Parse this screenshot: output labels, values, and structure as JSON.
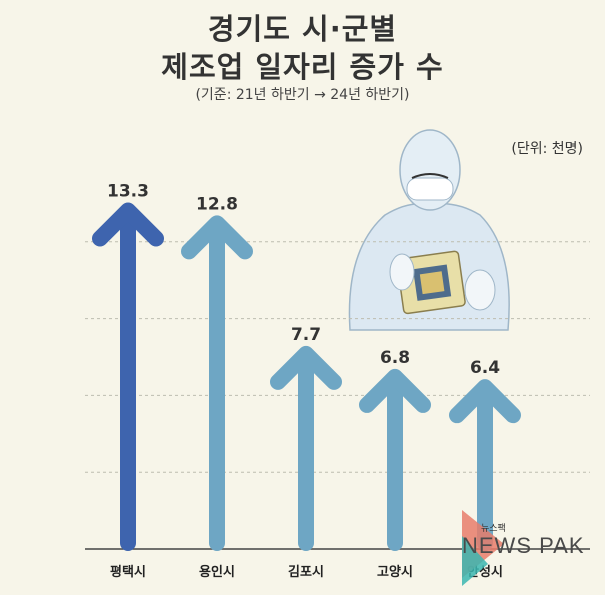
{
  "title_line1": "경기도 시·군별",
  "title_line2": "제조업 일자리 증가 수",
  "subtitle": "(기준: 21년 하반기 → 24년 하반기)",
  "unit_label": "(단위: 천명)",
  "logo": {
    "brand": "NEWS PAK",
    "small": "뉴스팩"
  },
  "chart_data": {
    "type": "bar",
    "title": "경기도 시·군별 제조업 일자리 증가 수",
    "subtitle": "(기준: 21년 하반기 → 24년 하반기)",
    "unit": "(단위: 천명)",
    "categories": [
      "평택시",
      "용인시",
      "김포시",
      "고양시",
      "안성시"
    ],
    "values": [
      13.3,
      12.8,
      7.7,
      6.8,
      6.4
    ],
    "value_labels": [
      "13.3",
      "12.8",
      "7.7",
      "6.8",
      "6.4"
    ],
    "ylim": [
      0,
      15
    ],
    "grid": true,
    "colors": [
      "#3e64ae",
      "#6ea6c4",
      "#6ea6c4",
      "#6ea6c4",
      "#6ea6c4"
    ]
  }
}
